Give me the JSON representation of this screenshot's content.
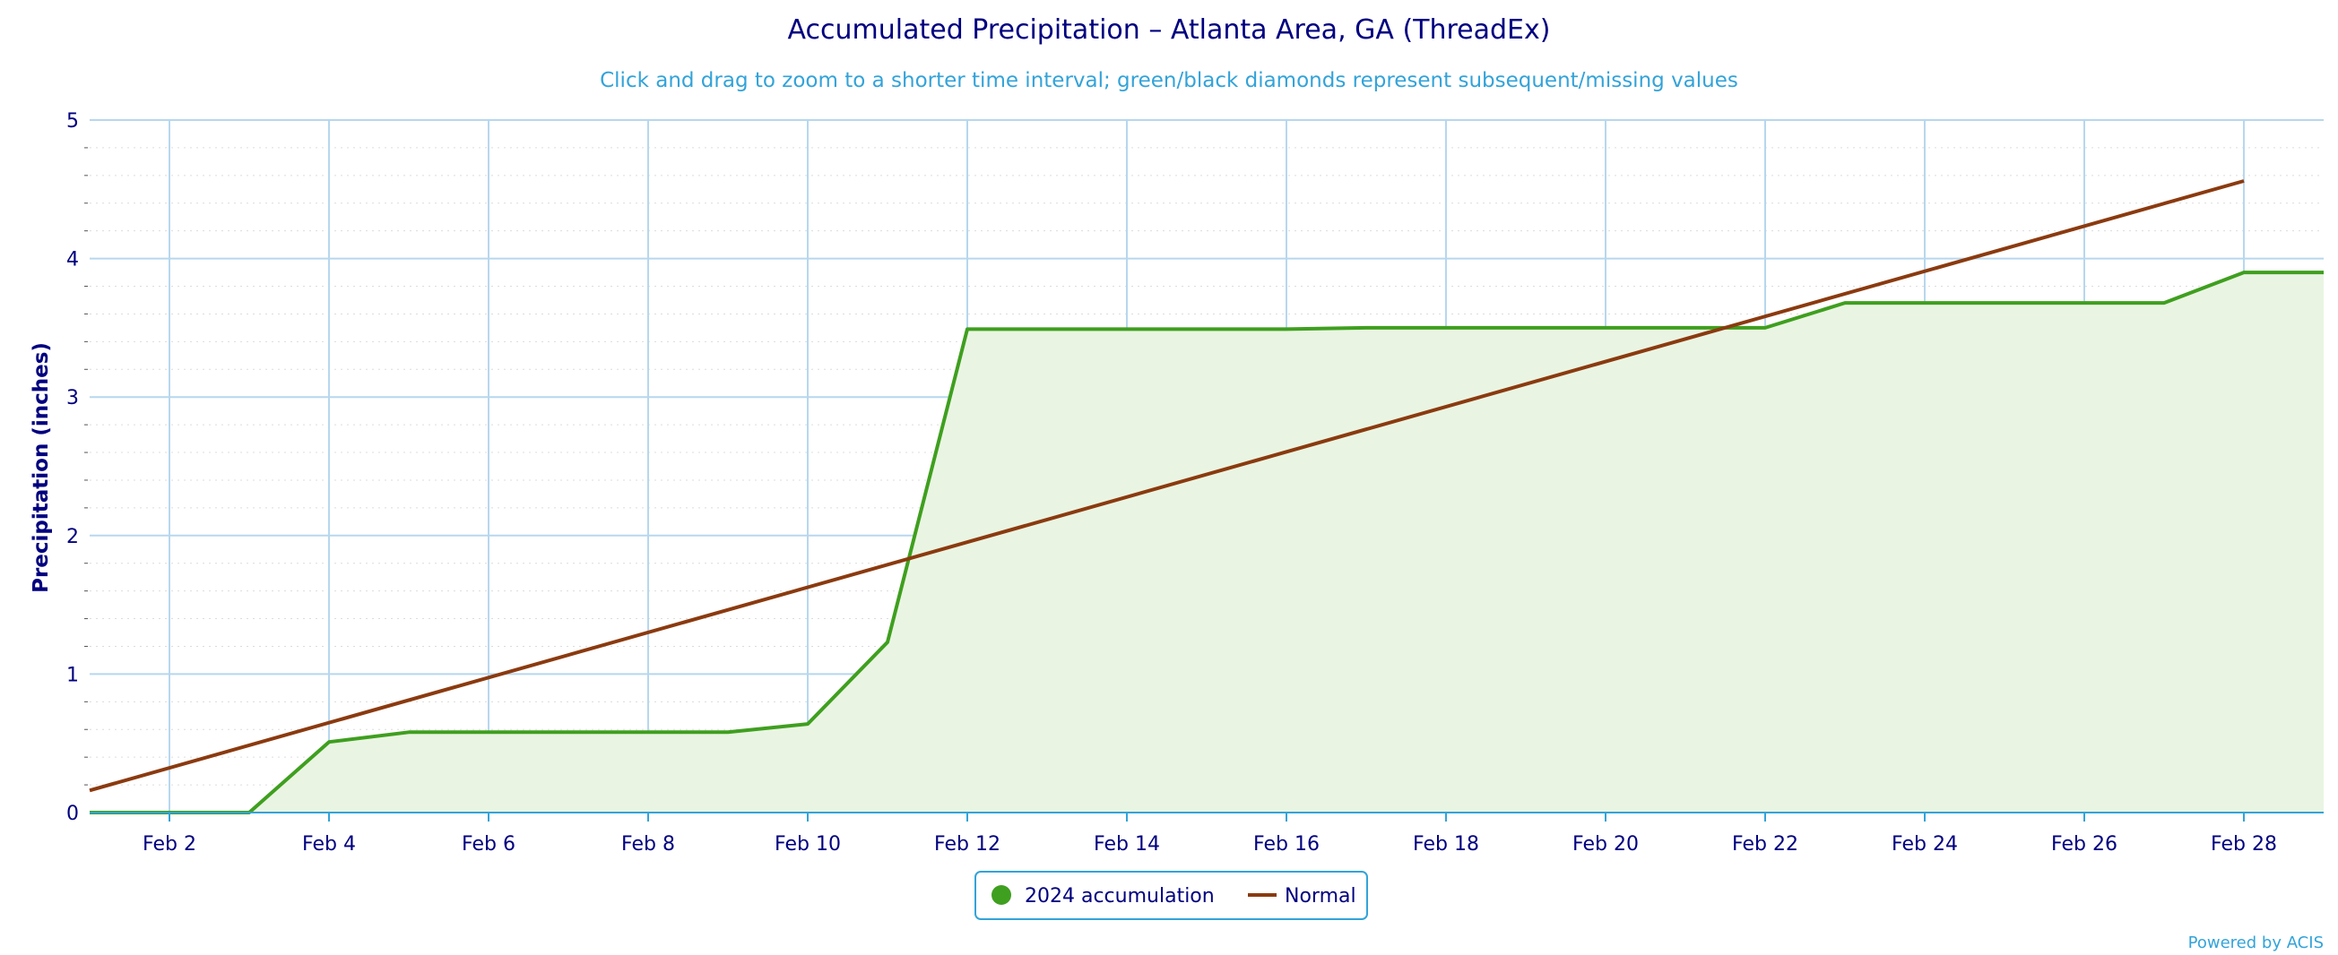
{
  "chart_data": {
    "type": "line",
    "title": "Accumulated Precipitation – Atlanta Area, GA (ThreadEx)",
    "subtitle": "Click and drag to zoom to a shorter time interval; green/black diamonds represent subsequent/missing values",
    "xlabel": "",
    "ylabel": "Precipitation (inches)",
    "ylim": [
      0,
      5
    ],
    "xlim": [
      "2024-02-01",
      "2024-02-29"
    ],
    "yticks": [
      "0",
      "1",
      "2",
      "3",
      "4",
      "5"
    ],
    "xticks": [
      {
        "day": 2,
        "label": "Feb 2"
      },
      {
        "day": 4,
        "label": "Feb 4"
      },
      {
        "day": 6,
        "label": "Feb 6"
      },
      {
        "day": 8,
        "label": "Feb 8"
      },
      {
        "day": 10,
        "label": "Feb 10"
      },
      {
        "day": 12,
        "label": "Feb 12"
      },
      {
        "day": 14,
        "label": "Feb 14"
      },
      {
        "day": 16,
        "label": "Feb 16"
      },
      {
        "day": 18,
        "label": "Feb 18"
      },
      {
        "day": 20,
        "label": "Feb 20"
      },
      {
        "day": 22,
        "label": "Feb 22"
      },
      {
        "day": 24,
        "label": "Feb 24"
      },
      {
        "day": 26,
        "label": "Feb 26"
      },
      {
        "day": 28,
        "label": "Feb 28"
      }
    ],
    "grid": true,
    "legend_position": "bottom-center",
    "series": [
      {
        "name": "2024 accumulation",
        "color": "#3f9f1f",
        "fill": "#e9f5e2",
        "marker": "circle",
        "points": [
          {
            "day": 1,
            "value": 0.0
          },
          {
            "day": 2,
            "value": 0.0
          },
          {
            "day": 3,
            "value": 0.0
          },
          {
            "day": 4,
            "value": 0.51
          },
          {
            "day": 5,
            "value": 0.58
          },
          {
            "day": 6,
            "value": 0.58
          },
          {
            "day": 7,
            "value": 0.58
          },
          {
            "day": 8,
            "value": 0.58
          },
          {
            "day": 9,
            "value": 0.58
          },
          {
            "day": 10,
            "value": 0.64
          },
          {
            "day": 11,
            "value": 1.23
          },
          {
            "day": 12,
            "value": 3.49
          },
          {
            "day": 13,
            "value": 3.49
          },
          {
            "day": 14,
            "value": 3.49
          },
          {
            "day": 15,
            "value": 3.49
          },
          {
            "day": 16,
            "value": 3.49
          },
          {
            "day": 17,
            "value": 3.5
          },
          {
            "day": 18,
            "value": 3.5
          },
          {
            "day": 19,
            "value": 3.5
          },
          {
            "day": 20,
            "value": 3.5
          },
          {
            "day": 21,
            "value": 3.5
          },
          {
            "day": 22,
            "value": 3.5
          },
          {
            "day": 23,
            "value": 3.68
          },
          {
            "day": 24,
            "value": 3.68
          },
          {
            "day": 25,
            "value": 3.68
          },
          {
            "day": 26,
            "value": 3.68
          },
          {
            "day": 27,
            "value": 3.68
          },
          {
            "day": 28,
            "value": 3.9
          },
          {
            "day": 29,
            "value": 3.9
          }
        ]
      },
      {
        "name": "Normal",
        "color": "#8b3a0f",
        "marker": "line",
        "points": [
          {
            "day": 1,
            "value": 0.16
          },
          {
            "day": 28,
            "value": 4.56
          }
        ]
      }
    ]
  },
  "credit": "Powered by ACIS"
}
